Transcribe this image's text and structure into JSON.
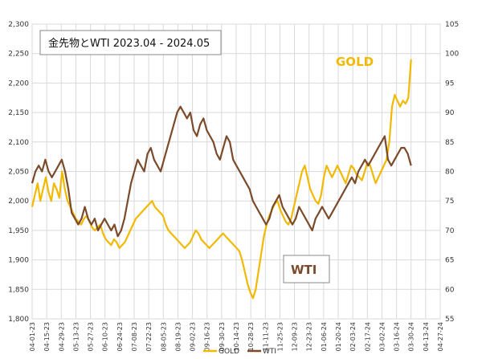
{
  "chart_data": {
    "type": "line",
    "title": "金先物とWTI  2023.04 - 2024.05",
    "x_ticks": [
      "04-01-23",
      "04-15-23",
      "04-29-23",
      "05-13-23",
      "05-27-23",
      "06-10-23",
      "06-24-23",
      "07-08-23",
      "07-22-23",
      "08-05-23",
      "08-19-23",
      "09-02-23",
      "09-16-23",
      "09-30-23",
      "10-14-23",
      "10-28-23",
      "11-11-23",
      "11-25-23",
      "12-09-23",
      "12-23-23",
      "01-06-24",
      "01-20-24",
      "02-03-24",
      "02-17-24",
      "03-02-24",
      "03-16-24",
      "03-30-24",
      "04-13-24",
      "04-27-24"
    ],
    "x_range": [
      "04-01-23",
      "04-27-24"
    ],
    "y_left": {
      "ticks": [
        "1,800",
        "1,850",
        "1,900",
        "1,950",
        "2,000",
        "2,050",
        "2,100",
        "2,150",
        "2,200",
        "2,250",
        "2,300"
      ],
      "range": [
        1800,
        2300
      ]
    },
    "y_right": {
      "ticks": [
        "55",
        "60",
        "65",
        "70",
        "75",
        "80",
        "85",
        "90",
        "95",
        "100",
        "105"
      ],
      "range": [
        55,
        105
      ]
    },
    "legend": {
      "position": "bottom",
      "entries": [
        "GOLD",
        "WTI"
      ]
    },
    "annotations": {
      "gold": "GOLD",
      "wti": "WTI"
    },
    "colors": {
      "gold": "#f2b900",
      "wti": "#7b4a2a",
      "grid": "#d9d9d9"
    },
    "series": [
      {
        "name": "GOLD",
        "axis": "left",
        "values": [
          1990,
          2010,
          2030,
          2000,
          2020,
          2040,
          2015,
          2000,
          2030,
          2020,
          2005,
          2050,
          2020,
          2000,
          1990,
          1980,
          1970,
          1965,
          1960,
          1970,
          1975,
          1965,
          1955,
          1950,
          1955,
          1960,
          1945,
          1935,
          1930,
          1925,
          1935,
          1930,
          1920,
          1925,
          1930,
          1940,
          1950,
          1960,
          1970,
          1975,
          1980,
          1985,
          1990,
          1995,
          2000,
          1990,
          1985,
          1980,
          1975,
          1960,
          1950,
          1945,
          1940,
          1935,
          1930,
          1925,
          1920,
          1925,
          1930,
          1940,
          1950,
          1945,
          1935,
          1930,
          1925,
          1920,
          1925,
          1930,
          1935,
          1940,
          1945,
          1940,
          1935,
          1930,
          1925,
          1920,
          1915,
          1900,
          1880,
          1860,
          1845,
          1835,
          1850,
          1880,
          1910,
          1940,
          1960,
          1975,
          1985,
          1995,
          2000,
          1985,
          1975,
          1965,
          1960,
          1970,
          1990,
          2010,
          2030,
          2050,
          2060,
          2040,
          2020,
          2010,
          2000,
          1995,
          2010,
          2040,
          2060,
          2050,
          2040,
          2050,
          2060,
          2050,
          2040,
          2030,
          2045,
          2060,
          2055,
          2045,
          2040,
          2035,
          2050,
          2065,
          2060,
          2045,
          2030,
          2040,
          2050,
          2060,
          2070,
          2100,
          2160,
          2180,
          2170,
          2160,
          2170,
          2165,
          2175,
          2240
        ]
      },
      {
        "name": "WTI",
        "axis": "right",
        "values": [
          78,
          80,
          81,
          80,
          82,
          80,
          79,
          80,
          81,
          82,
          80,
          77,
          73,
          72,
          71,
          72,
          74,
          72,
          71,
          72,
          70,
          71,
          72,
          71,
          70,
          71,
          69,
          70,
          72,
          75,
          78,
          80,
          82,
          81,
          80,
          83,
          84,
          82,
          81,
          80,
          82,
          84,
          86,
          88,
          90,
          91,
          90,
          89,
          90,
          87,
          86,
          88,
          89,
          87,
          86,
          85,
          83,
          82,
          84,
          86,
          85,
          82,
          81,
          80,
          79,
          78,
          77,
          75,
          74,
          73,
          72,
          71,
          72,
          74,
          75,
          76,
          74,
          73,
          72,
          71,
          72,
          74,
          73,
          72,
          71,
          70,
          72,
          73,
          74,
          73,
          72,
          73,
          74,
          75,
          76,
          77,
          78,
          79,
          78,
          80,
          81,
          82,
          81,
          82,
          83,
          84,
          85,
          86,
          82,
          81,
          82,
          83,
          84,
          84,
          83,
          81
        ]
      }
    ]
  }
}
